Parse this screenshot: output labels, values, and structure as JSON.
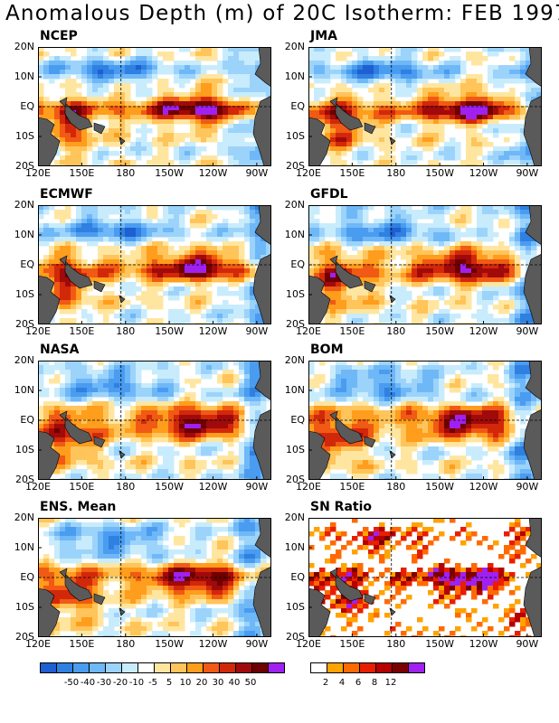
{
  "title": "Anomalous Depth (m) of 20C Isotherm: FEB 1997",
  "panels": [
    {
      "label": "NCEP"
    },
    {
      "label": "JMA"
    },
    {
      "label": "ECMWF"
    },
    {
      "label": "GFDL"
    },
    {
      "label": "NASA"
    },
    {
      "label": "BOM"
    },
    {
      "label": "ENS. Mean"
    },
    {
      "label": "SN Ratio"
    }
  ],
  "lat_labels": [
    "20N",
    "10N",
    "EQ",
    "10S",
    "20S"
  ],
  "lon_labels": [
    "120E",
    "150E",
    "180",
    "150W",
    "120W",
    "90W"
  ],
  "depth_colorbar": {
    "colors": [
      "#1e5fd2",
      "#2f80e0",
      "#4a9cf0",
      "#6fb8f8",
      "#9cd3fb",
      "#c8ecfc",
      "#ffffff",
      "#ffe6a0",
      "#ffc45a",
      "#ff9d1c",
      "#f05a14",
      "#d2280a",
      "#a00a0a",
      "#6e0000",
      "#a020f0"
    ],
    "labels": [
      "-50",
      "-40",
      "-30",
      "-20",
      "-10",
      "-5",
      "5",
      "10",
      "20",
      "30",
      "40",
      "50"
    ]
  },
  "sn_colorbar": {
    "colors": [
      "#ffffff",
      "#ffa300",
      "#ff6a00",
      "#e81e00",
      "#b40000",
      "#7a0000",
      "#a020f0"
    ],
    "labels": [
      "2",
      "4",
      "6",
      "8",
      "12"
    ]
  },
  "colors": {
    "land": "#5a5a5a"
  }
}
